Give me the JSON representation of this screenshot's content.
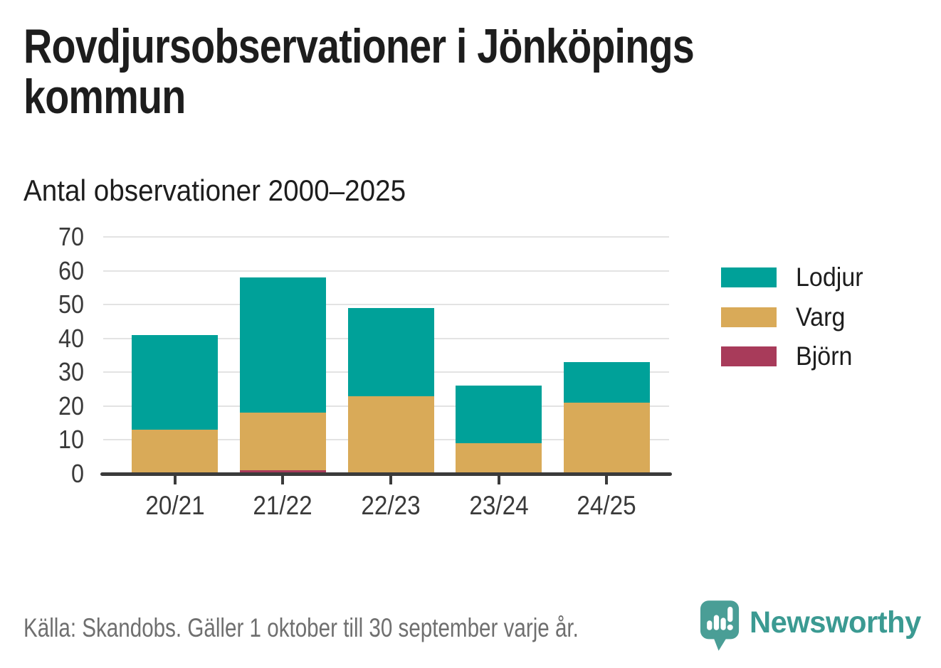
{
  "header": {
    "title": "Rovdjursobservationer i Jönköpings kommun"
  },
  "chart_data": {
    "type": "bar",
    "stacked": true,
    "title": "Antal observationer 2000–2025",
    "xlabel": "",
    "ylabel": "",
    "categories": [
      "20/21",
      "21/22",
      "22/23",
      "23/24",
      "24/25"
    ],
    "series": [
      {
        "name": "Lodjur",
        "color": "#00a199",
        "values": [
          28,
          40,
          26,
          17,
          12
        ]
      },
      {
        "name": "Varg",
        "color": "#d9aa58",
        "values": [
          13,
          17,
          23,
          9,
          21
        ]
      },
      {
        "name": "Björn",
        "color": "#a83b5a",
        "values": [
          0,
          1,
          0,
          0,
          0
        ]
      }
    ],
    "stack_bottom_to_top": [
      "Björn",
      "Varg",
      "Lodjur"
    ],
    "totals": [
      41,
      58,
      49,
      26,
      33
    ],
    "ylim": [
      0,
      70
    ],
    "yticks": [
      0,
      10,
      20,
      30,
      40,
      50,
      60,
      70
    ],
    "grid": "horizontal",
    "legend_position": "right"
  },
  "colors": {
    "axis": "#3b3b3b",
    "grid": "#e3e3e3",
    "logo_bubble": "#4a9e96",
    "wordmark": "#3b9a92"
  },
  "footer": {
    "source": "Källa: Skandobs. Gäller 1 oktober till 30 september varje år.",
    "brand": "Newsworthy"
  }
}
